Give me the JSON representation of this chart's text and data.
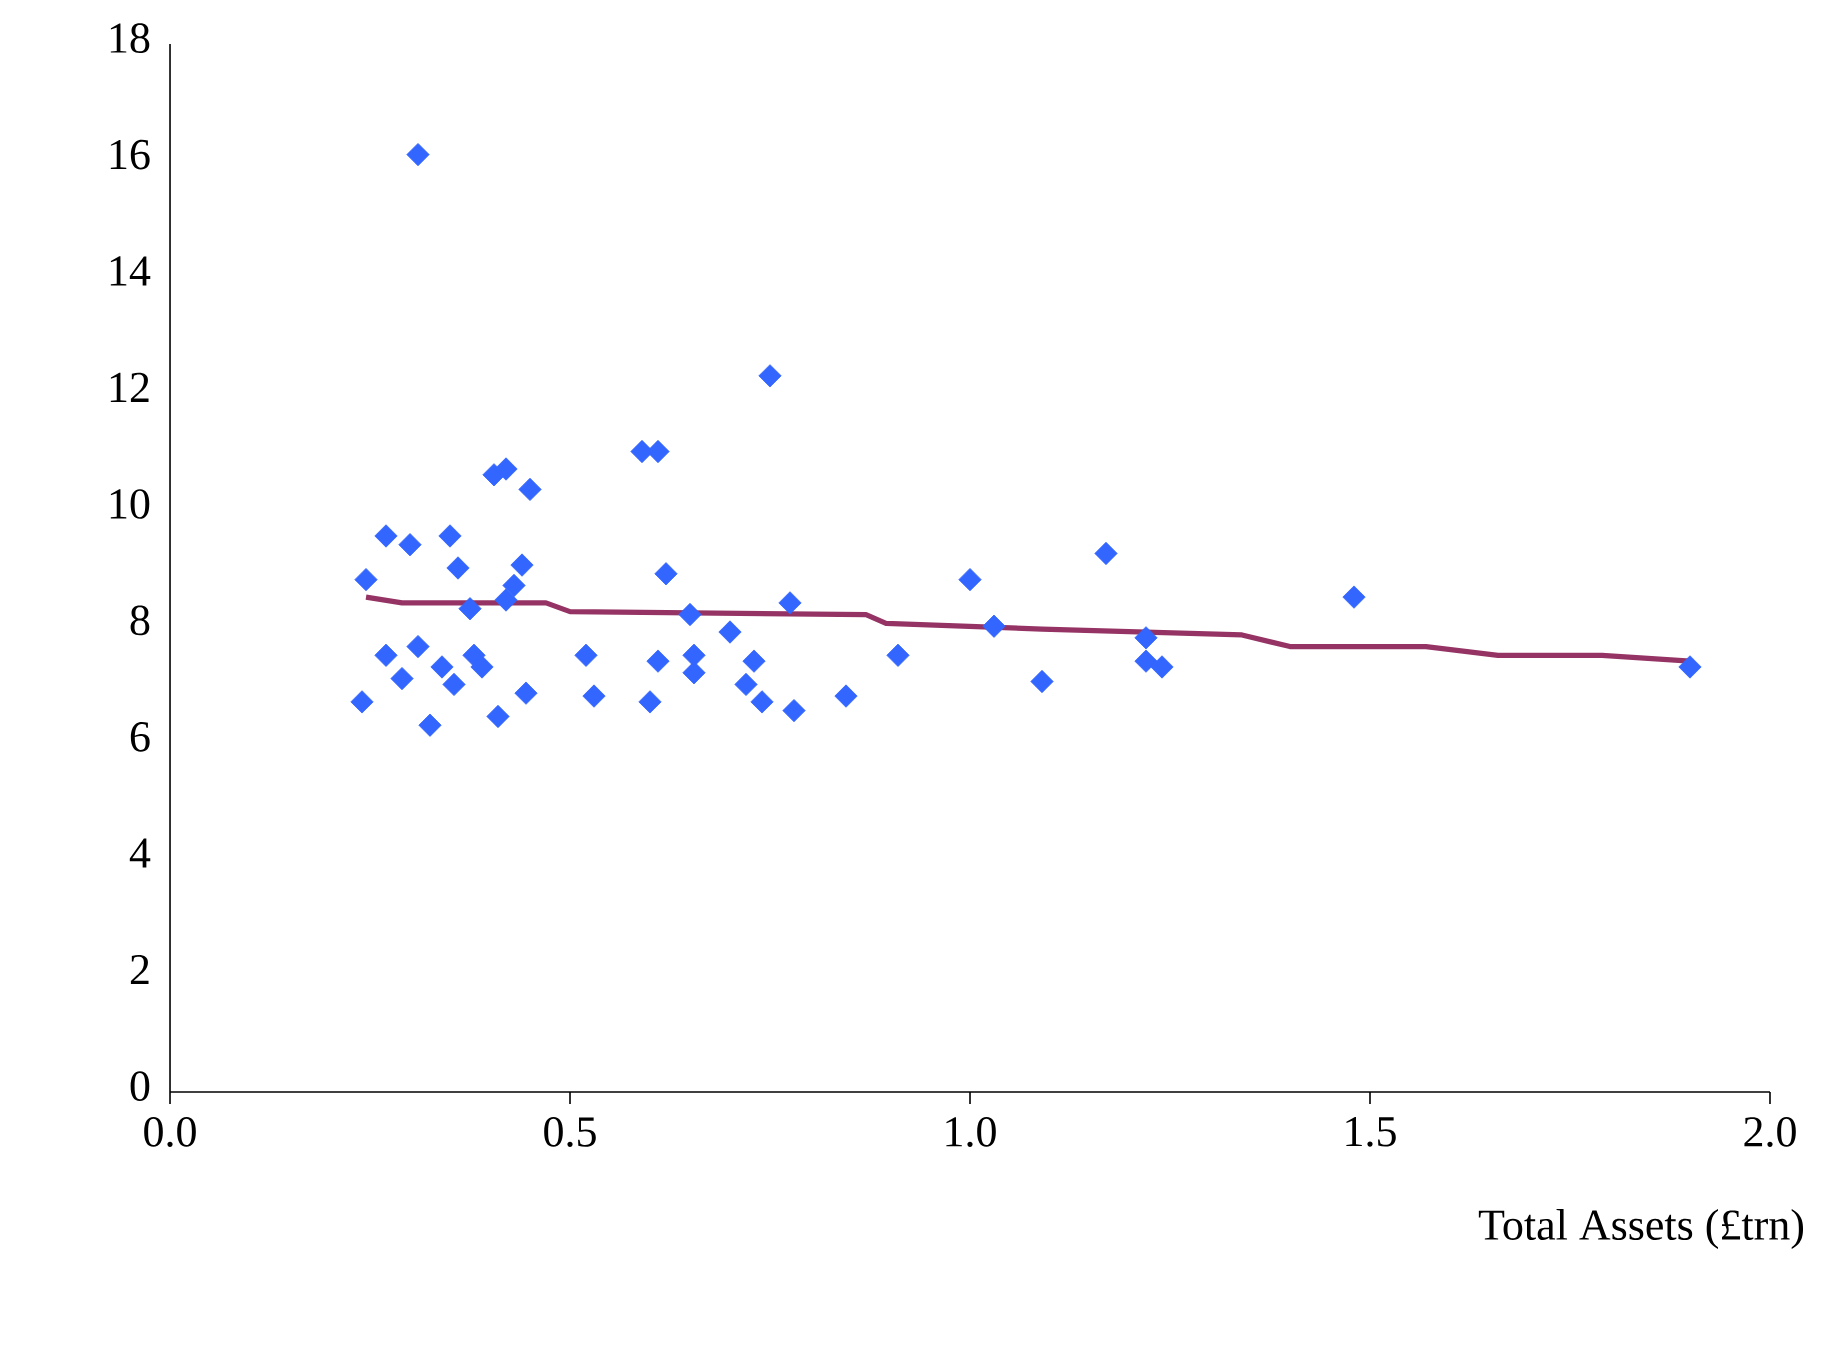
{
  "chart_data": {
    "type": "scatter",
    "xlabel": "Total Assets (£trn)",
    "xlim": [
      0,
      2
    ],
    "ylim": [
      0,
      18
    ],
    "xticks": [
      {
        "value": 0,
        "label": "0.0"
      },
      {
        "value": 0.5,
        "label": "0.5"
      },
      {
        "value": 1,
        "label": "1.0"
      },
      {
        "value": 1.5,
        "label": "1.5"
      },
      {
        "value": 2,
        "label": "2.0"
      }
    ],
    "yticks": [
      0,
      2,
      4,
      6,
      8,
      10,
      12,
      14,
      16,
      18
    ],
    "grid": false,
    "series": [
      {
        "color": "#3366ff",
        "marker": "diamond",
        "x": [
          0.31,
          0.75,
          0.59,
          0.61,
          0.405,
          0.42,
          0.45,
          0.27,
          0.3,
          0.35,
          0.36,
          0.44,
          0.245,
          0.43,
          0.375,
          0.42,
          0.62,
          0.775,
          1.0,
          0.65,
          0.7,
          0.91,
          0.52,
          0.61,
          0.655,
          0.73,
          0.27,
          0.31,
          0.38,
          0.34,
          0.29,
          0.355,
          0.39,
          0.24,
          0.325,
          0.41,
          0.445,
          0.53,
          0.6,
          0.74,
          0.78,
          0.845,
          0.72,
          0.655,
          1.17,
          1.48,
          1.03,
          1.09,
          1.22,
          1.22,
          1.24,
          1.9
        ],
        "values": [
          16.1,
          12.3,
          11.0,
          11.0,
          10.6,
          10.7,
          10.35,
          9.55,
          9.4,
          9.55,
          9.0,
          9.05,
          8.8,
          8.7,
          8.3,
          8.45,
          8.9,
          8.4,
          8.8,
          8.2,
          7.9,
          7.5,
          7.5,
          7.4,
          7.5,
          7.4,
          7.5,
          7.65,
          7.5,
          7.3,
          7.1,
          7.0,
          7.3,
          6.7,
          6.3,
          6.45,
          6.85,
          6.8,
          6.7,
          6.7,
          6.55,
          6.8,
          7.0,
          7.2,
          9.25,
          8.5,
          8.0,
          7.05,
          7.8,
          7.4,
          7.3,
          7.3
        ]
      },
      {
        "type": "line",
        "color": "#953464",
        "marker": "none",
        "line_style": "solid",
        "x": [
          0.245,
          0.29,
          0.47,
          0.5,
          0.87,
          0.895,
          1.09,
          1.34,
          1.4,
          1.57,
          1.66,
          1.79,
          1.9
        ],
        "values": [
          8.5,
          8.4,
          8.4,
          8.25,
          8.2,
          8.05,
          7.95,
          7.85,
          7.65,
          7.65,
          7.5,
          7.5,
          7.4
        ]
      }
    ]
  }
}
